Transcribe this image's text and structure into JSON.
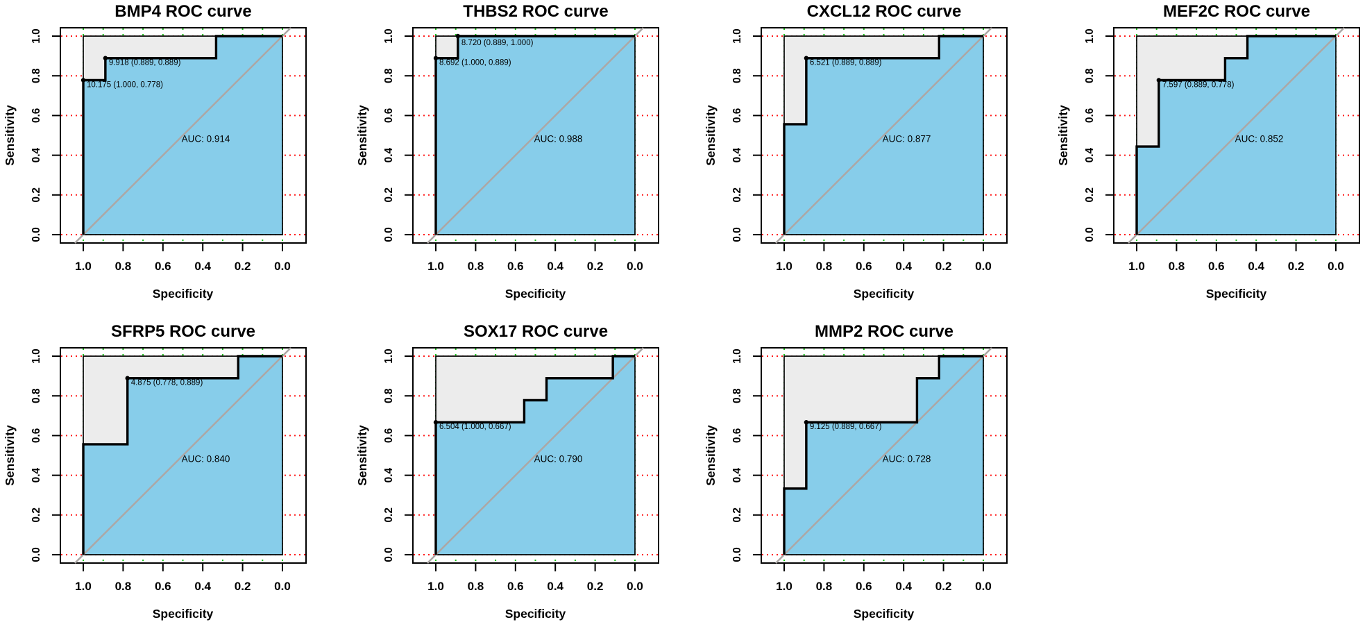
{
  "figure": {
    "background": "#ffffff",
    "colors": {
      "auc_fill": "#87CDEA",
      "upper_fill": "#ECECEC",
      "curve": "#000000",
      "diagonal": "#ACA7A5",
      "h_grid": "#FF1A1A",
      "v_grid": "#1EC71E",
      "box": "#000000",
      "text": "#000000"
    },
    "x_axis": {
      "label": "Specificity",
      "ticks": [
        "1.0",
        "0.8",
        "0.6",
        "0.4",
        "0.2",
        "0.0"
      ],
      "tick_values": [
        1.0,
        0.8,
        0.6,
        0.4,
        0.2,
        0.0
      ]
    },
    "y_axis": {
      "label": "Sensitivity",
      "ticks": [
        "0.0",
        "0.2",
        "0.4",
        "0.6",
        "0.8",
        "1.0"
      ],
      "tick_values": [
        0.0,
        0.2,
        0.4,
        0.6,
        0.8,
        1.0
      ]
    }
  },
  "chart_data": [
    {
      "type": "line",
      "subtype": "roc-step",
      "gene": "BMP4",
      "title": "BMP4 ROC curve",
      "xlabel": "Specificity",
      "ylabel": "Sensitivity",
      "xlim": [
        1.0,
        0.0
      ],
      "ylim": [
        0.0,
        1.0
      ],
      "grid": true,
      "row": 0,
      "col": 0,
      "auc": 0.914,
      "auc_label": "AUC: 0.914",
      "curve_points_spec_sens": [
        [
          1,
          0
        ],
        [
          1,
          0.778
        ],
        [
          0.889,
          0.778
        ],
        [
          0.889,
          0.889
        ],
        [
          0.333,
          0.889
        ],
        [
          0.333,
          1
        ],
        [
          0,
          1
        ]
      ],
      "thresholds": [
        {
          "label": "9.918 (0.889, 0.889)",
          "specificity": 0.889,
          "sensitivity": 0.889
        },
        {
          "label": "10.175 (1.000, 0.778)",
          "specificity": 1.0,
          "sensitivity": 0.778
        }
      ]
    },
    {
      "type": "line",
      "subtype": "roc-step",
      "gene": "THBS2",
      "title": "THBS2 ROC curve",
      "xlabel": "Specificity",
      "ylabel": "Sensitivity",
      "xlim": [
        1.0,
        0.0
      ],
      "ylim": [
        0.0,
        1.0
      ],
      "grid": true,
      "row": 0,
      "col": 1,
      "auc": 0.988,
      "auc_label": "AUC: 0.988",
      "curve_points_spec_sens": [
        [
          1,
          0
        ],
        [
          1,
          0.889
        ],
        [
          0.889,
          0.889
        ],
        [
          0.889,
          1
        ],
        [
          0,
          1
        ]
      ],
      "thresholds": [
        {
          "label": "8.720 (0.889, 1.000)",
          "specificity": 0.889,
          "sensitivity": 1.0
        },
        {
          "label": "8.692 (1.000, 0.889)",
          "specificity": 1.0,
          "sensitivity": 0.889
        }
      ]
    },
    {
      "type": "line",
      "subtype": "roc-step",
      "gene": "CXCL12",
      "title": "CXCL12 ROC curve",
      "xlabel": "Specificity",
      "ylabel": "Sensitivity",
      "xlim": [
        1.0,
        0.0
      ],
      "ylim": [
        0.0,
        1.0
      ],
      "grid": true,
      "row": 0,
      "col": 2,
      "auc": 0.877,
      "auc_label": "AUC: 0.877",
      "curve_points_spec_sens": [
        [
          1,
          0
        ],
        [
          1,
          0.556
        ],
        [
          0.889,
          0.556
        ],
        [
          0.889,
          0.889
        ],
        [
          0.222,
          0.889
        ],
        [
          0.222,
          1
        ],
        [
          0,
          1
        ]
      ],
      "thresholds": [
        {
          "label": "6.521 (0.889, 0.889)",
          "specificity": 0.889,
          "sensitivity": 0.889
        }
      ]
    },
    {
      "type": "line",
      "subtype": "roc-step",
      "gene": "MEF2C",
      "title": "MEF2C ROC curve",
      "xlabel": "Specificity",
      "ylabel": "Sensitivity",
      "xlim": [
        1.0,
        0.0
      ],
      "ylim": [
        0.0,
        1.0
      ],
      "grid": true,
      "row": 0,
      "col": 3,
      "auc": 0.852,
      "auc_label": "AUC: 0.852",
      "curve_points_spec_sens": [
        [
          1,
          0
        ],
        [
          1,
          0.444
        ],
        [
          0.889,
          0.444
        ],
        [
          0.889,
          0.778
        ],
        [
          0.556,
          0.778
        ],
        [
          0.556,
          0.889
        ],
        [
          0.444,
          0.889
        ],
        [
          0.444,
          1
        ],
        [
          0,
          1
        ]
      ],
      "thresholds": [
        {
          "label": "7.597 (0.889, 0.778)",
          "specificity": 0.889,
          "sensitivity": 0.778
        }
      ]
    },
    {
      "type": "line",
      "subtype": "roc-step",
      "gene": "SFRP5",
      "title": "SFRP5 ROC curve",
      "xlabel": "Specificity",
      "ylabel": "Sensitivity",
      "xlim": [
        1.0,
        0.0
      ],
      "ylim": [
        0.0,
        1.0
      ],
      "grid": true,
      "row": 1,
      "col": 0,
      "auc": 0.84,
      "auc_label": "AUC: 0.840",
      "curve_points_spec_sens": [
        [
          1,
          0
        ],
        [
          1,
          0.556
        ],
        [
          0.778,
          0.556
        ],
        [
          0.778,
          0.889
        ],
        [
          0.222,
          0.889
        ],
        [
          0.222,
          1
        ],
        [
          0,
          1
        ]
      ],
      "thresholds": [
        {
          "label": "4.875 (0.778, 0.889)",
          "specificity": 0.778,
          "sensitivity": 0.889
        }
      ]
    },
    {
      "type": "line",
      "subtype": "roc-step",
      "gene": "SOX17",
      "title": "SOX17 ROC curve",
      "xlabel": "Specificity",
      "ylabel": "Sensitivity",
      "xlim": [
        1.0,
        0.0
      ],
      "ylim": [
        0.0,
        1.0
      ],
      "grid": true,
      "row": 1,
      "col": 1,
      "auc": 0.79,
      "auc_label": "AUC: 0.790",
      "curve_points_spec_sens": [
        [
          1,
          0
        ],
        [
          1,
          0.667
        ],
        [
          0.556,
          0.667
        ],
        [
          0.556,
          0.778
        ],
        [
          0.444,
          0.778
        ],
        [
          0.444,
          0.889
        ],
        [
          0.111,
          0.889
        ],
        [
          0.111,
          1
        ],
        [
          0,
          1
        ]
      ],
      "thresholds": [
        {
          "label": "6.504 (1.000, 0.667)",
          "specificity": 1.0,
          "sensitivity": 0.667
        }
      ]
    },
    {
      "type": "line",
      "subtype": "roc-step",
      "gene": "MMP2",
      "title": "MMP2 ROC curve",
      "xlabel": "Specificity",
      "ylabel": "Sensitivity",
      "xlim": [
        1.0,
        0.0
      ],
      "ylim": [
        0.0,
        1.0
      ],
      "grid": true,
      "row": 1,
      "col": 2,
      "auc": 0.728,
      "auc_label": "AUC: 0.728",
      "curve_points_spec_sens": [
        [
          1,
          0
        ],
        [
          1,
          0.333
        ],
        [
          0.889,
          0.333
        ],
        [
          0.889,
          0.667
        ],
        [
          0.333,
          0.667
        ],
        [
          0.333,
          0.889
        ],
        [
          0.222,
          0.889
        ],
        [
          0.222,
          1
        ],
        [
          0,
          1
        ]
      ],
      "thresholds": [
        {
          "label": "9.125 (0.889, 0.667)",
          "specificity": 0.889,
          "sensitivity": 0.667
        }
      ]
    }
  ]
}
